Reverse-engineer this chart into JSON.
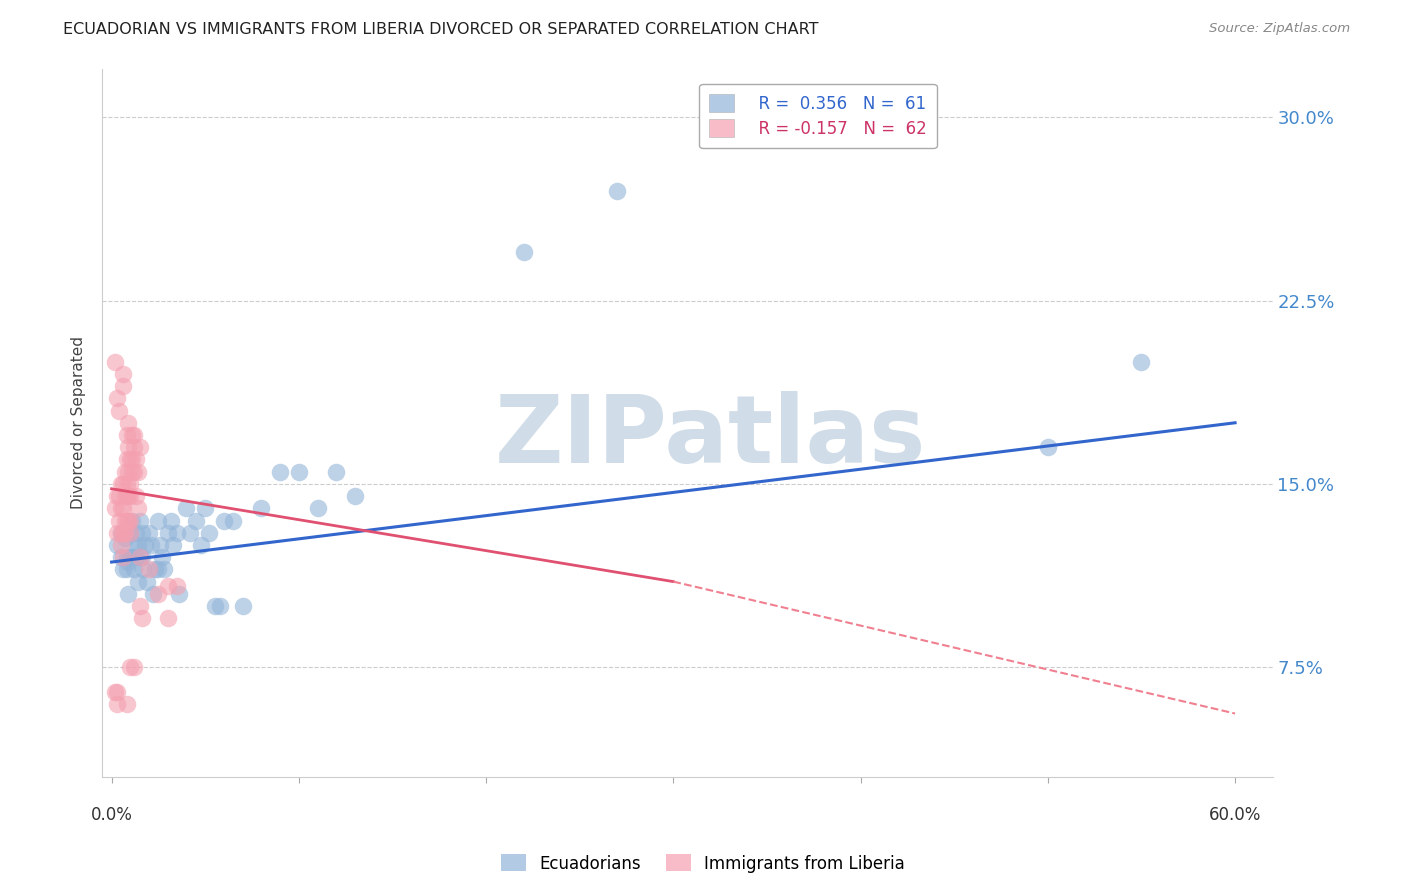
{
  "title": "ECUADORIAN VS IMMIGRANTS FROM LIBERIA DIVORCED OR SEPARATED CORRELATION CHART",
  "source": "Source: ZipAtlas.com",
  "ylabel": "Divorced or Separated",
  "ytick_labels": [
    "30.0%",
    "22.5%",
    "15.0%",
    "7.5%"
  ],
  "ytick_values": [
    30.0,
    22.5,
    15.0,
    7.5
  ],
  "ymin": 3.0,
  "ymax": 32.0,
  "xmin": -0.5,
  "xmax": 62.0,
  "blue_color": "#92B4D8",
  "pink_color": "#F4A0B0",
  "trendline_blue": "#3366CC",
  "trendline_pink_solid": "#E05070",
  "trendline_pink_dash": "#F08090",
  "blue_scatter": [
    [
      0.3,
      12.5
    ],
    [
      0.5,
      13.0
    ],
    [
      0.5,
      12.0
    ],
    [
      0.6,
      11.5
    ],
    [
      0.7,
      12.8
    ],
    [
      0.8,
      12.0
    ],
    [
      0.8,
      11.5
    ],
    [
      0.9,
      11.8
    ],
    [
      0.9,
      10.5
    ],
    [
      1.0,
      12.0
    ],
    [
      1.0,
      13.0
    ],
    [
      1.1,
      13.5
    ],
    [
      1.1,
      12.0
    ],
    [
      1.2,
      12.5
    ],
    [
      1.2,
      11.5
    ],
    [
      1.3,
      13.0
    ],
    [
      1.3,
      12.0
    ],
    [
      1.4,
      12.5
    ],
    [
      1.4,
      11.0
    ],
    [
      1.5,
      13.5
    ],
    [
      1.5,
      12.0
    ],
    [
      1.6,
      13.0
    ],
    [
      1.6,
      12.0
    ],
    [
      1.7,
      11.5
    ],
    [
      1.8,
      12.5
    ],
    [
      1.9,
      11.0
    ],
    [
      2.0,
      13.0
    ],
    [
      2.1,
      12.5
    ],
    [
      2.2,
      10.5
    ],
    [
      2.3,
      11.5
    ],
    [
      2.5,
      13.5
    ],
    [
      2.5,
      11.5
    ],
    [
      2.6,
      12.5
    ],
    [
      2.7,
      12.0
    ],
    [
      2.8,
      11.5
    ],
    [
      3.0,
      13.0
    ],
    [
      3.2,
      13.5
    ],
    [
      3.3,
      12.5
    ],
    [
      3.5,
      13.0
    ],
    [
      3.6,
      10.5
    ],
    [
      4.0,
      14.0
    ],
    [
      4.2,
      13.0
    ],
    [
      4.5,
      13.5
    ],
    [
      4.8,
      12.5
    ],
    [
      5.0,
      14.0
    ],
    [
      5.2,
      13.0
    ],
    [
      5.5,
      10.0
    ],
    [
      5.8,
      10.0
    ],
    [
      6.0,
      13.5
    ],
    [
      6.5,
      13.5
    ],
    [
      7.0,
      10.0
    ],
    [
      8.0,
      14.0
    ],
    [
      9.0,
      15.5
    ],
    [
      10.0,
      15.5
    ],
    [
      11.0,
      14.0
    ],
    [
      12.0,
      15.5
    ],
    [
      13.0,
      14.5
    ],
    [
      22.0,
      24.5
    ],
    [
      27.0,
      27.0
    ],
    [
      50.0,
      16.5
    ],
    [
      55.0,
      20.0
    ]
  ],
  "pink_scatter": [
    [
      0.2,
      14.0
    ],
    [
      0.3,
      14.5
    ],
    [
      0.3,
      13.0
    ],
    [
      0.4,
      14.5
    ],
    [
      0.4,
      13.5
    ],
    [
      0.5,
      15.0
    ],
    [
      0.5,
      14.0
    ],
    [
      0.5,
      13.0
    ],
    [
      0.5,
      12.5
    ],
    [
      0.6,
      15.0
    ],
    [
      0.6,
      14.0
    ],
    [
      0.6,
      13.0
    ],
    [
      0.6,
      12.0
    ],
    [
      0.7,
      15.5
    ],
    [
      0.7,
      14.5
    ],
    [
      0.7,
      13.5
    ],
    [
      0.7,
      13.0
    ],
    [
      0.8,
      17.0
    ],
    [
      0.8,
      16.0
    ],
    [
      0.8,
      15.0
    ],
    [
      0.8,
      14.5
    ],
    [
      0.8,
      13.5
    ],
    [
      0.9,
      17.5
    ],
    [
      0.9,
      16.5
    ],
    [
      0.9,
      15.5
    ],
    [
      0.9,
      14.5
    ],
    [
      0.9,
      13.5
    ],
    [
      1.0,
      16.0
    ],
    [
      1.0,
      15.0
    ],
    [
      1.0,
      14.5
    ],
    [
      1.0,
      13.5
    ],
    [
      1.0,
      13.0
    ],
    [
      1.1,
      17.0
    ],
    [
      1.1,
      16.0
    ],
    [
      1.1,
      15.5
    ],
    [
      1.2,
      17.0
    ],
    [
      1.2,
      16.5
    ],
    [
      1.2,
      15.5
    ],
    [
      1.3,
      16.0
    ],
    [
      1.3,
      14.5
    ],
    [
      1.4,
      15.5
    ],
    [
      1.4,
      14.0
    ],
    [
      1.5,
      16.5
    ],
    [
      1.5,
      12.0
    ],
    [
      0.2,
      20.0
    ],
    [
      0.4,
      18.0
    ],
    [
      0.3,
      6.0
    ],
    [
      0.8,
      6.0
    ],
    [
      1.0,
      7.5
    ],
    [
      1.2,
      7.5
    ],
    [
      1.5,
      10.0
    ],
    [
      1.6,
      9.5
    ],
    [
      0.2,
      6.5
    ],
    [
      0.3,
      6.5
    ],
    [
      2.0,
      11.5
    ],
    [
      2.5,
      10.5
    ],
    [
      3.0,
      10.8
    ],
    [
      3.0,
      9.5
    ],
    [
      3.5,
      10.8
    ],
    [
      0.6,
      19.0
    ],
    [
      0.6,
      19.5
    ],
    [
      0.3,
      18.5
    ]
  ],
  "blue_trendline": [
    [
      0.0,
      11.8
    ],
    [
      60.0,
      17.5
    ]
  ],
  "pink_trendline_solid": [
    [
      0.0,
      14.8
    ],
    [
      30.0,
      11.0
    ]
  ],
  "pink_trendline_dash": [
    [
      30.0,
      11.0
    ],
    [
      60.0,
      5.6
    ]
  ],
  "background_color": "#ffffff",
  "grid_color": "#cccccc",
  "watermark": "ZIPatlas",
  "watermark_color": "#d0dce8"
}
